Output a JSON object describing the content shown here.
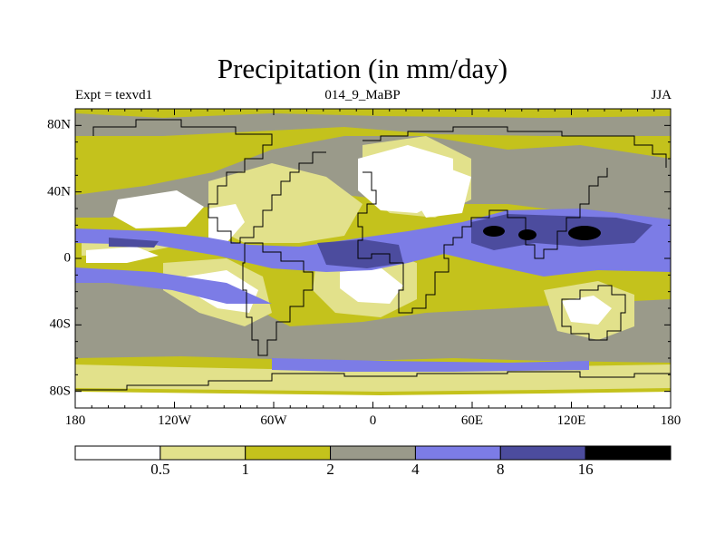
{
  "title": "Precipitation (in mm/day)",
  "subtitle_left": "Expt = texvd1",
  "subtitle_center": "014_9_MaBP",
  "subtitle_right": "JJA",
  "lon_labels": [
    "180",
    "120W",
    "60W",
    "0",
    "60E",
    "120E",
    "180"
  ],
  "lat_labels": [
    "80N",
    "40N",
    "0",
    "40S",
    "80S"
  ],
  "colorbar": {
    "colors": [
      "#ffffff",
      "#e2e18b",
      "#c4c21c",
      "#9a9a8a",
      "#7c7ce6",
      "#4c4c9e",
      "#000000"
    ],
    "labels": [
      "0.5",
      "1",
      "2",
      "4",
      "8",
      "16"
    ]
  }
}
